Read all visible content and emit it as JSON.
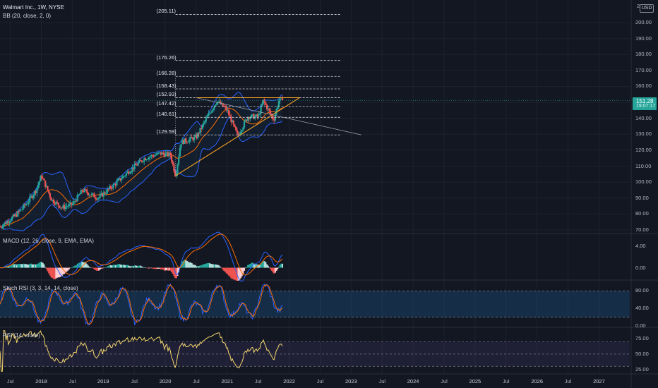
{
  "main": {
    "title": "Walmart Inc., 1W, NYSE",
    "indicator": "BB (20, close, 2, 0)",
    "currency": "USD",
    "last_price": "151.28",
    "countdown": "19:07:17",
    "top_axis_label": "21",
    "price_axis": [
      "200.00",
      "190.00",
      "180.00",
      "170.00",
      "160.00",
      "150.00",
      "140.00",
      "130.00",
      "120.00",
      "110.00",
      "100.00",
      "90.00",
      "80.00",
      "70.00"
    ],
    "fib_levels": [
      "205.11",
      "176.26",
      "166.28",
      "158.43",
      "152.93",
      "147.42",
      "140.61",
      "129.59"
    ]
  },
  "macd": {
    "label": "MACD (12, 26, close, 9, EMA, EMA)",
    "axis": [
      "4.00",
      "0.00"
    ]
  },
  "stoch": {
    "label": "Stoch RSI (3, 3, 14, 14, close)",
    "axis": [
      "80.00",
      "40.00",
      "0.00"
    ]
  },
  "rsi": {
    "label": "RSI (14, close)",
    "axis": [
      "75.00",
      "50.00",
      "25.00"
    ]
  },
  "x_axis": [
    "Jul",
    "2018",
    "Jul",
    "2019",
    "Jul",
    "2020",
    "Jul",
    "2021",
    "Jul",
    "2022",
    "Jul",
    "2023",
    "Jul",
    "2024",
    "Jul",
    "2025",
    "Jul",
    "2026",
    "Jul",
    "2027"
  ],
  "colors": {
    "background": "#131722",
    "up": "#26a69a",
    "down": "#ef5350",
    "bb_basis": "#ff6d00",
    "bb_band": "#2962ff",
    "macd": "#2962ff",
    "signal": "#ff6d00",
    "stoch_k": "#2962ff",
    "stoch_d": "#ff6d00",
    "rsi": "#f5d76e",
    "triangle": "#ffa726"
  },
  "chart_data": {
    "type": "candlestick",
    "symbol": "WMT",
    "interval": "1W",
    "x_range": [
      "2017-05",
      "2027-06"
    ],
    "y_range": [
      70,
      210
    ],
    "last_close": 151.28,
    "weekly_close_path": [
      [
        "2017-05",
        72
      ],
      [
        "2017-08",
        79
      ],
      [
        "2017-10",
        86
      ],
      [
        "2017-12",
        95
      ],
      [
        "2018-01",
        104
      ],
      [
        "2018-03",
        89
      ],
      [
        "2018-05",
        84
      ],
      [
        "2018-07",
        86
      ],
      [
        "2018-09",
        95
      ],
      [
        "2018-12",
        90
      ],
      [
        "2019-03",
        98
      ],
      [
        "2019-06",
        107
      ],
      [
        "2019-09",
        115
      ],
      [
        "2019-12",
        118
      ],
      [
        "2020-02",
        117
      ],
      [
        "2020-03",
        104
      ],
      [
        "2020-04",
        125
      ],
      [
        "2020-07",
        128
      ],
      [
        "2020-09",
        140
      ],
      [
        "2020-11",
        151
      ],
      [
        "2021-01",
        145
      ],
      [
        "2021-03",
        129
      ],
      [
        "2021-05",
        141
      ],
      [
        "2021-07",
        141
      ],
      [
        "2021-08",
        151
      ],
      [
        "2021-10",
        139
      ],
      [
        "2021-11",
        151
      ]
    ],
    "fib_levels": [
      205.11,
      176.26,
      166.28,
      158.43,
      152.93,
      147.42,
      140.61,
      129.59
    ],
    "macd_range": [
      -2,
      6
    ],
    "stoch_range": [
      0,
      100
    ],
    "rsi_range": [
      20,
      90
    ]
  }
}
